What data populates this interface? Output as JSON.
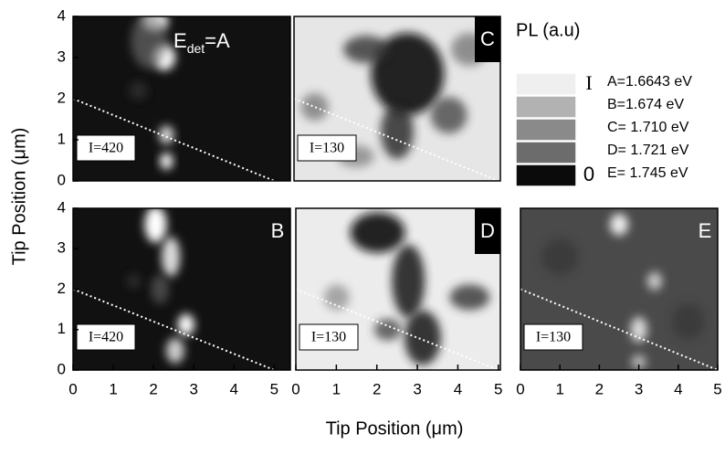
{
  "chart_data": [
    {
      "type": "map",
      "label": [
        "E",
        "det",
        "=A"
      ],
      "intensity_label": "I=420",
      "color": "#111111",
      "xlim": [
        0,
        5.4
      ],
      "ylim": [
        0,
        4
      ],
      "yticks": [
        0,
        1,
        2,
        3,
        4
      ],
      "guide_line": {
        "x": [
          0,
          5
        ],
        "y": [
          2,
          0
        ]
      }
    },
    {
      "type": "map",
      "label": [
        "C"
      ],
      "intensity_label": "I=130",
      "color": "#e6e6e6",
      "xlim": [
        0,
        5.05
      ],
      "ylim": [
        0,
        4
      ],
      "guide_line": {
        "x": [
          0,
          5
        ],
        "y": [
          2,
          0
        ]
      }
    },
    {
      "type": "map",
      "label": [
        "B"
      ],
      "intensity_label": "I=420",
      "color": "#111111",
      "xlim": [
        0,
        5.4
      ],
      "ylim": [
        0,
        4
      ],
      "xticks": [
        0,
        1,
        2,
        3,
        4,
        5
      ],
      "yticks": [
        0,
        1,
        2,
        3,
        4
      ],
      "guide_line": {
        "x": [
          0,
          5
        ],
        "y": [
          2,
          0
        ]
      }
    },
    {
      "type": "map",
      "label": [
        "D"
      ],
      "intensity_label": "I=130",
      "color": "#ececec",
      "xlim": [
        0,
        5.05
      ],
      "ylim": [
        0,
        4
      ],
      "xticks": [
        0,
        1,
        2,
        3,
        4,
        5
      ],
      "guide_line": {
        "x": [
          0,
          5
        ],
        "y": [
          2,
          0
        ]
      }
    },
    {
      "type": "map",
      "label": [
        "E"
      ],
      "intensity_label": "I=130",
      "color": "#4a4a4a",
      "xlim": [
        0,
        5
      ],
      "ylim": [
        0,
        4
      ],
      "xticks": [
        0,
        1,
        2,
        3,
        4,
        5
      ],
      "guide_line": {
        "x": [
          0,
          5
        ],
        "y": [
          2,
          0
        ]
      }
    }
  ],
  "y_axis_label": "Tip Position (μm)",
  "x_axis_label": "Tip Position (μm)",
  "legend": {
    "title": "PL (a.u)",
    "high_label": "I",
    "low_label": "0",
    "items": [
      {
        "label": "A=1.6643 eV",
        "color": "#efefef"
      },
      {
        "label": "B=1.674 eV",
        "color": "#b2b2b2"
      },
      {
        "label": "C= 1.710 eV",
        "color": "#8a8a8a"
      },
      {
        "label": "D= 1.721 eV",
        "color": "#6c6c6c"
      },
      {
        "label": "E= 1.745 eV",
        "color": "#0b0b0b"
      }
    ]
  }
}
